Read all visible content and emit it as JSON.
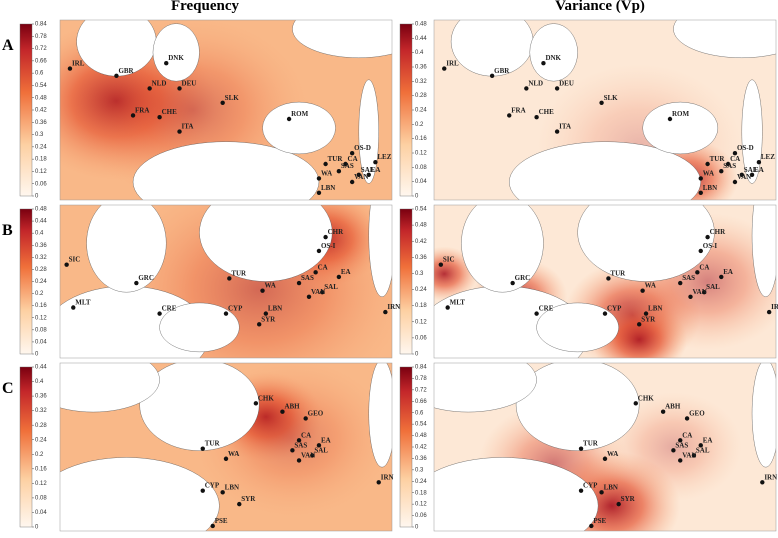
{
  "column_titles": [
    "Frequency",
    "Variance (Vp)"
  ],
  "rows": [
    {
      "label": "A",
      "panels": [
        {
          "colorbar_ticks": [
            0.84,
            0.78,
            0.72,
            0.66,
            0.6,
            0.54,
            0.48,
            0.42,
            0.36,
            0.3,
            0.24,
            0.18,
            0.12,
            0.06,
            0
          ],
          "sites": [
            "IRL",
            "GBR",
            "DNK",
            "NLD",
            "DEU",
            "FRA",
            "CHE",
            "SLK",
            "ROM",
            "ITA",
            "OS-D",
            "LEZ",
            "CA",
            "EA",
            "TUR",
            "SAS",
            "SAL",
            "VAN",
            "WA",
            "LBN"
          ]
        },
        {
          "colorbar_ticks": [
            0.48,
            0.44,
            0.4,
            0.36,
            0.32,
            0.28,
            0.24,
            0.2,
            0.16,
            0.12,
            0.08,
            0.04,
            0
          ],
          "sites": [
            "IRL",
            "GBR",
            "DNK",
            "NLD",
            "DEU",
            "FRA",
            "CHE",
            "SLK",
            "ROM",
            "ITA",
            "OS-D",
            "LEZ",
            "CA",
            "EA",
            "TUR",
            "SAS",
            "SAL",
            "VAN",
            "WA",
            "LBN"
          ]
        }
      ]
    },
    {
      "label": "B",
      "panels": [
        {
          "colorbar_ticks": [
            0.48,
            0.44,
            0.4,
            0.36,
            0.32,
            0.28,
            0.24,
            0.2,
            0.16,
            0.12,
            0.08,
            0.04,
            0
          ],
          "sites": [
            "CHR",
            "OS-I",
            "SIC",
            "GRC",
            "TUR",
            "CA",
            "EA",
            "SAS",
            "SAL",
            "VAN",
            "WA",
            "MLT",
            "CRE",
            "CYP",
            "LBN",
            "SYR",
            "IRN"
          ]
        },
        {
          "colorbar_ticks": [
            0.54,
            0.48,
            0.42,
            0.36,
            0.3,
            0.24,
            0.18,
            0.12,
            0.06,
            0
          ],
          "sites": [
            "CHR",
            "OS-I",
            "SIC",
            "GRC",
            "TUR",
            "CA",
            "EA",
            "SAS",
            "SAL",
            "VAN",
            "WA",
            "MLT",
            "CRE",
            "CYP",
            "LBN",
            "SYR",
            "IRN"
          ]
        }
      ]
    },
    {
      "label": "C",
      "panels": [
        {
          "colorbar_ticks": [
            0.44,
            0.4,
            0.36,
            0.32,
            0.28,
            0.24,
            0.2,
            0.16,
            0.12,
            0.08,
            0.04,
            0
          ],
          "sites": [
            "CHK",
            "ABH",
            "GEO",
            "TUR",
            "CA",
            "EA",
            "SAS",
            "SAL",
            "VAN",
            "WA",
            "CYP",
            "LBN",
            "SYR",
            "IRN",
            "PSE"
          ]
        },
        {
          "colorbar_ticks": [
            0.84,
            0.78,
            0.72,
            0.66,
            0.6,
            0.54,
            0.48,
            0.42,
            0.36,
            0.3,
            0.24,
            0.18,
            0.12,
            0.06,
            0
          ],
          "sites": [
            "CHK",
            "ABH",
            "GEO",
            "TUR",
            "CA",
            "EA",
            "SAS",
            "SAL",
            "VAN",
            "WA",
            "CYP",
            "LBN",
            "SYR",
            "IRN",
            "PSE"
          ]
        }
      ]
    }
  ]
}
